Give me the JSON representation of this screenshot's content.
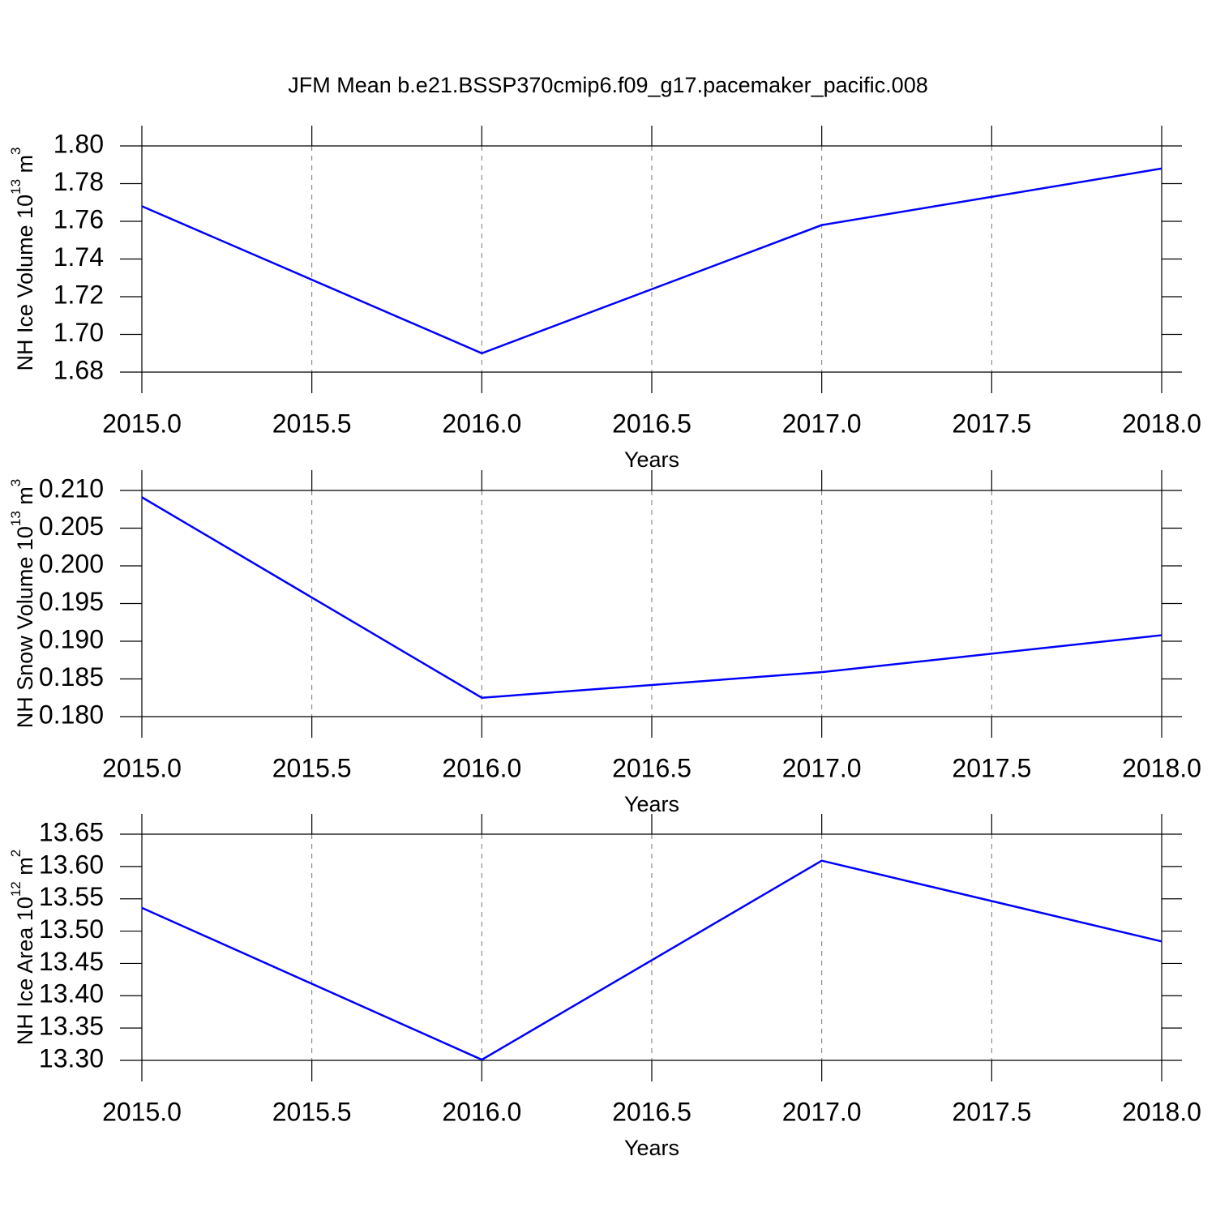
{
  "title": "JFM Mean b.e21.BSSP370cmip6.f09_g17.pacemaker_pacific.008",
  "chart_data": [
    {
      "type": "line",
      "xlabel": "Years",
      "ylabel": [
        "NH Ice Volume 10",
        "13",
        " m",
        "3"
      ],
      "x": [
        2015,
        2016,
        2017,
        2018
      ],
      "values": [
        1.768,
        1.69,
        1.758,
        1.788
      ],
      "color": "#0000ff",
      "xlim": [
        2015,
        2018
      ],
      "ylim": [
        1.68,
        1.8
      ],
      "xticks": [
        {
          "value": 2015,
          "label": "2015.0"
        },
        2015.5,
        {
          "value": 2016,
          "label": "2016.0"
        },
        2016.5,
        {
          "value": 2017,
          "label": "2017.0"
        },
        2017.5,
        {
          "value": 2018,
          "label": "2018.0"
        }
      ],
      "yticks": [
        1.68,
        {
          "value": 1.7,
          "label": "1.70"
        },
        1.72,
        1.74,
        1.76,
        1.78,
        {
          "value": 1.8,
          "label": "1.80"
        }
      ],
      "grid": "x"
    },
    {
      "type": "line",
      "xlabel": "Years",
      "ylabel": [
        "NH Snow Volume 10",
        "13",
        " m",
        "3"
      ],
      "x": [
        2015,
        2016,
        2017,
        2018
      ],
      "values": [
        0.2091,
        0.1825,
        0.1859,
        0.1908
      ],
      "color": "#0000ff",
      "xlim": [
        2015,
        2018
      ],
      "ylim": [
        0.18,
        0.21
      ],
      "xticks": [
        {
          "value": 2015,
          "label": "2015.0"
        },
        2015.5,
        {
          "value": 2016,
          "label": "2016.0"
        },
        2016.5,
        {
          "value": 2017,
          "label": "2017.0"
        },
        2017.5,
        {
          "value": 2018,
          "label": "2018.0"
        }
      ],
      "yticks": [
        {
          "value": 0.18,
          "label": "0.180"
        },
        0.185,
        {
          "value": 0.19,
          "label": "0.190"
        },
        0.195,
        {
          "value": 0.2,
          "label": "0.200"
        },
        0.205,
        {
          "value": 0.21,
          "label": "0.210"
        }
      ],
      "grid": "x"
    },
    {
      "type": "line",
      "xlabel": "Years",
      "ylabel": [
        "NH Ice Area 10",
        "12",
        " m",
        "2"
      ],
      "x": [
        2015,
        2016,
        2017,
        2018
      ],
      "values": [
        13.536,
        13.301,
        13.609,
        13.484
      ],
      "color": "#0000ff",
      "xlim": [
        2015,
        2018
      ],
      "ylim": [
        13.3,
        13.65
      ],
      "xticks": [
        {
          "value": 2015,
          "label": "2015.0"
        },
        2015.5,
        {
          "value": 2016,
          "label": "2016.0"
        },
        2016.5,
        {
          "value": 2017,
          "label": "2017.0"
        },
        2017.5,
        {
          "value": 2018,
          "label": "2018.0"
        }
      ],
      "yticks": [
        {
          "value": 13.3,
          "label": "13.30"
        },
        13.35,
        {
          "value": 13.4,
          "label": "13.40"
        },
        13.45,
        {
          "value": 13.5,
          "label": "13.50"
        },
        13.55,
        {
          "value": 13.6,
          "label": "13.60"
        },
        13.65
      ],
      "grid": "x"
    }
  ]
}
